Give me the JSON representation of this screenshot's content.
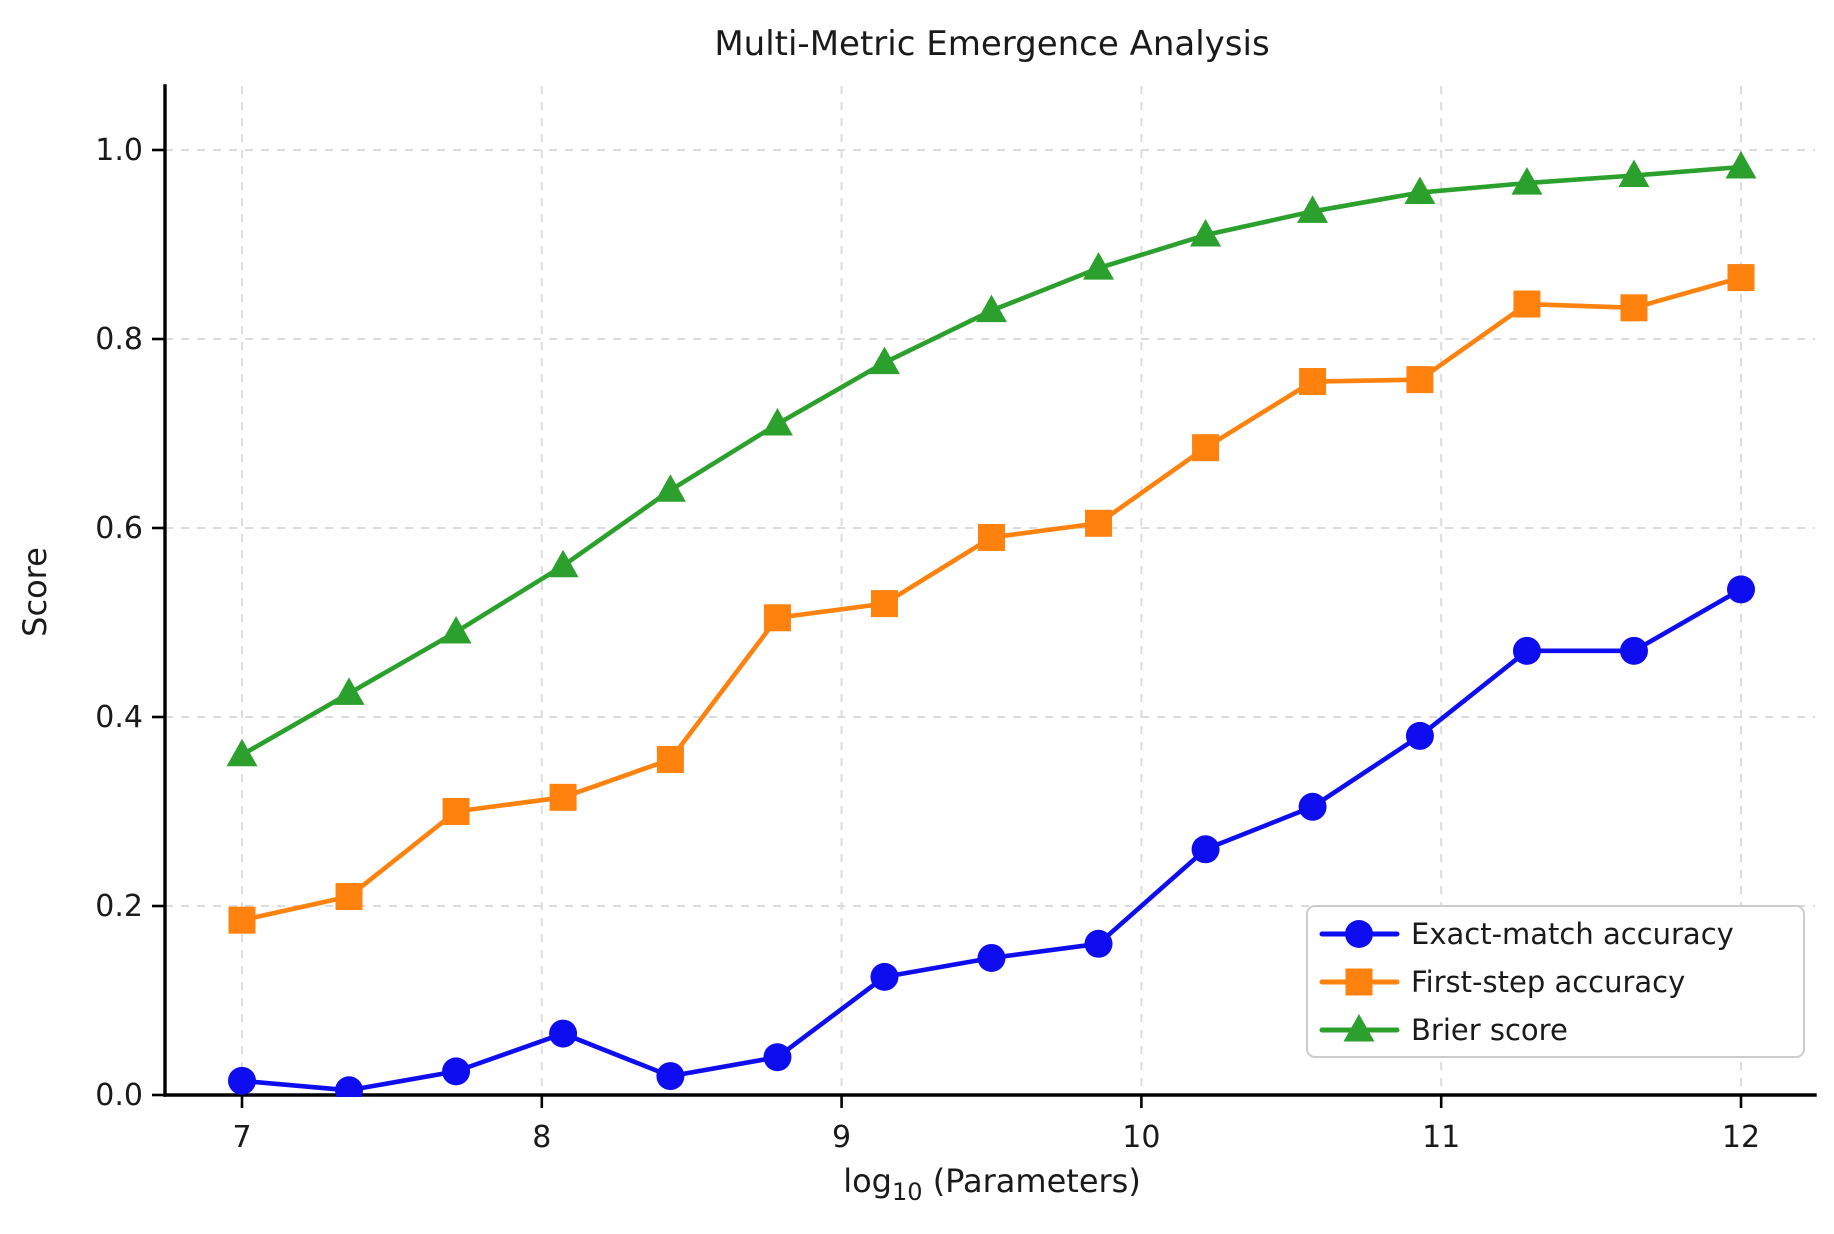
{
  "chart_data": {
    "type": "line",
    "title": "Multi-Metric Emergence Analysis",
    "xlabel": "log10 (Parameters)",
    "xlabel_parts": {
      "pre": "log",
      "sub": "10",
      "post": " (Parameters)"
    },
    "ylabel": "Score",
    "x": [
      7.0,
      7.357,
      7.714,
      8.071,
      8.429,
      8.786,
      9.143,
      9.5,
      9.857,
      10.214,
      10.571,
      10.929,
      11.286,
      11.643,
      12.0
    ],
    "series": [
      {
        "name": "Exact-match accuracy",
        "marker": "circle",
        "color": "#0d0df0",
        "values": [
          0.015,
          0.005,
          0.025,
          0.065,
          0.02,
          0.04,
          0.125,
          0.145,
          0.16,
          0.26,
          0.305,
          0.38,
          0.47,
          0.47,
          0.535
        ]
      },
      {
        "name": "First-step accuracy",
        "marker": "square",
        "color": "#ff810e",
        "values": [
          0.185,
          0.21,
          0.3,
          0.315,
          0.355,
          0.505,
          0.52,
          0.59,
          0.605,
          0.685,
          0.755,
          0.757,
          0.837,
          0.833,
          0.865
        ]
      },
      {
        "name": "Brier score",
        "marker": "triangle",
        "color": "#2ca02c",
        "values": [
          0.36,
          0.425,
          0.49,
          0.56,
          0.64,
          0.71,
          0.775,
          0.83,
          0.875,
          0.91,
          0.935,
          0.955,
          0.965,
          0.973,
          0.982
        ]
      }
    ],
    "xticks": [
      "7",
      "8",
      "9",
      "10",
      "11",
      "12"
    ],
    "yticks": [
      "0.0",
      "0.2",
      "0.4",
      "0.6",
      "0.8",
      "1.0"
    ],
    "xlim": [
      6.745,
      12.255
    ],
    "ylim": [
      0.0,
      1.066
    ],
    "grid": "dashed",
    "legend_position": "lower right"
  },
  "colors": {
    "grid": "#dcdcdc",
    "text": "#1a1a1a",
    "legend_border": "#cccccc",
    "background": "#ffffff"
  }
}
